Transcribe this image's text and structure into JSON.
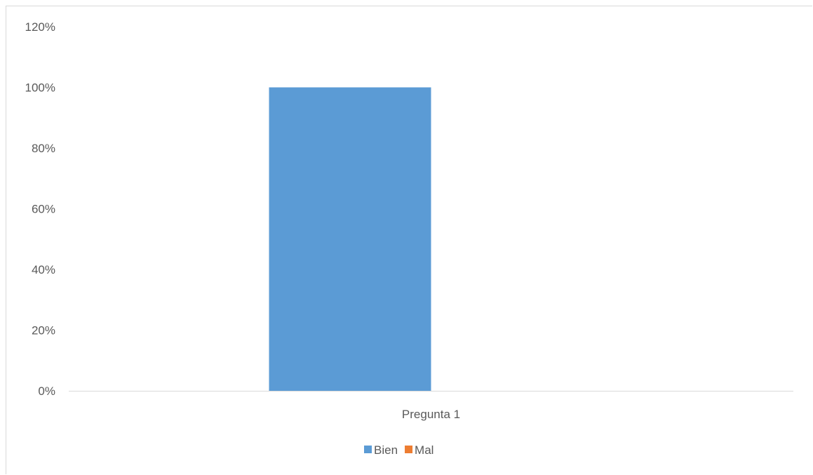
{
  "chart_data": {
    "type": "bar",
    "categories": [
      "Pregunta 1"
    ],
    "series": [
      {
        "name": "Bien",
        "values": [
          1.0
        ],
        "color": "#5B9BD5"
      },
      {
        "name": "Mal",
        "values": [
          0.0
        ],
        "color": "#ED7D31"
      }
    ],
    "title": "",
    "xlabel": "",
    "ylabel": "",
    "ylim": [
      0,
      1.2
    ],
    "yticks": [
      0,
      0.2,
      0.4,
      0.6,
      0.8,
      1.0,
      1.2
    ],
    "ytick_labels": [
      "0%",
      "20%",
      "40%",
      "60%",
      "80%",
      "100%",
      "120%"
    ],
    "grid": false,
    "legend_position": "bottom"
  }
}
